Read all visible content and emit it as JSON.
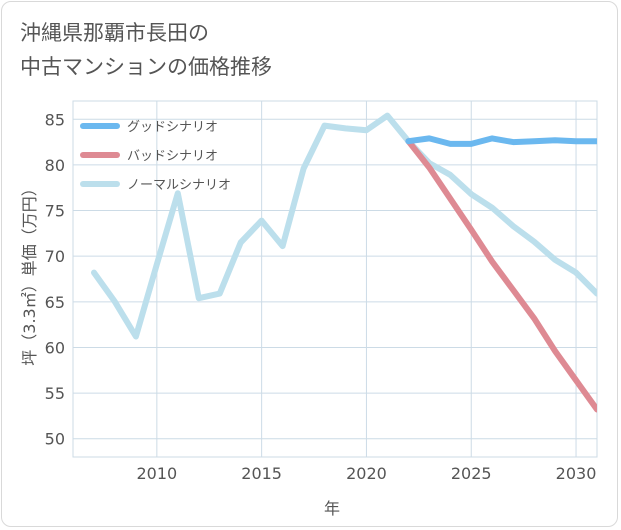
{
  "title": {
    "line1": "沖縄県那覇市長田の",
    "line2": "中古マンションの価格推移"
  },
  "colors": {
    "good": "#6bb8ef",
    "bad": "#de8a93",
    "normal": "#bcdfec",
    "grid": "#ccdbe6",
    "text": "#555555"
  },
  "chart_data": {
    "type": "line",
    "title": "沖縄県那覇市長田の中古マンションの価格推移",
    "xlabel": "年",
    "ylabel": "坪（3.3㎡）単価（万円）",
    "xlim": [
      2006,
      2031
    ],
    "ylim": [
      48,
      87
    ],
    "xticks": [
      2010,
      2015,
      2020,
      2025,
      2030
    ],
    "yticks": [
      50,
      55,
      60,
      65,
      70,
      75,
      80,
      85
    ],
    "grid": true,
    "legend_position": "top-left",
    "series": [
      {
        "name": "グッドシナリオ",
        "key": "good",
        "x": [
          2022,
          2023,
          2024,
          2025,
          2026,
          2027,
          2028,
          2029,
          2030,
          2031
        ],
        "values": [
          82.6,
          82.9,
          82.3,
          82.3,
          82.9,
          82.5,
          82.6,
          82.7,
          82.6,
          82.6
        ]
      },
      {
        "name": "バッドシナリオ",
        "key": "bad",
        "x": [
          2022,
          2023,
          2024,
          2025,
          2026,
          2027,
          2028,
          2029,
          2030,
          2031
        ],
        "values": [
          82.6,
          79.7,
          76.3,
          72.9,
          69.4,
          66.3,
          63.2,
          59.6,
          56.4,
          53.2
        ]
      },
      {
        "name": "ノーマルシナリオ",
        "key": "normal",
        "x": [
          2007,
          2008,
          2009,
          2010,
          2011,
          2012,
          2013,
          2014,
          2015,
          2016,
          2017,
          2018,
          2019,
          2020,
          2021,
          2022,
          2023,
          2024,
          2025,
          2026,
          2027,
          2028,
          2029,
          2030,
          2031
        ],
        "values": [
          68.2,
          65.0,
          61.2,
          69.1,
          76.9,
          65.4,
          65.9,
          71.5,
          73.9,
          71.1,
          79.6,
          84.3,
          84.0,
          83.8,
          85.4,
          82.6,
          80.2,
          78.9,
          76.8,
          75.3,
          73.3,
          71.6,
          69.6,
          68.2,
          65.9
        ]
      }
    ]
  }
}
